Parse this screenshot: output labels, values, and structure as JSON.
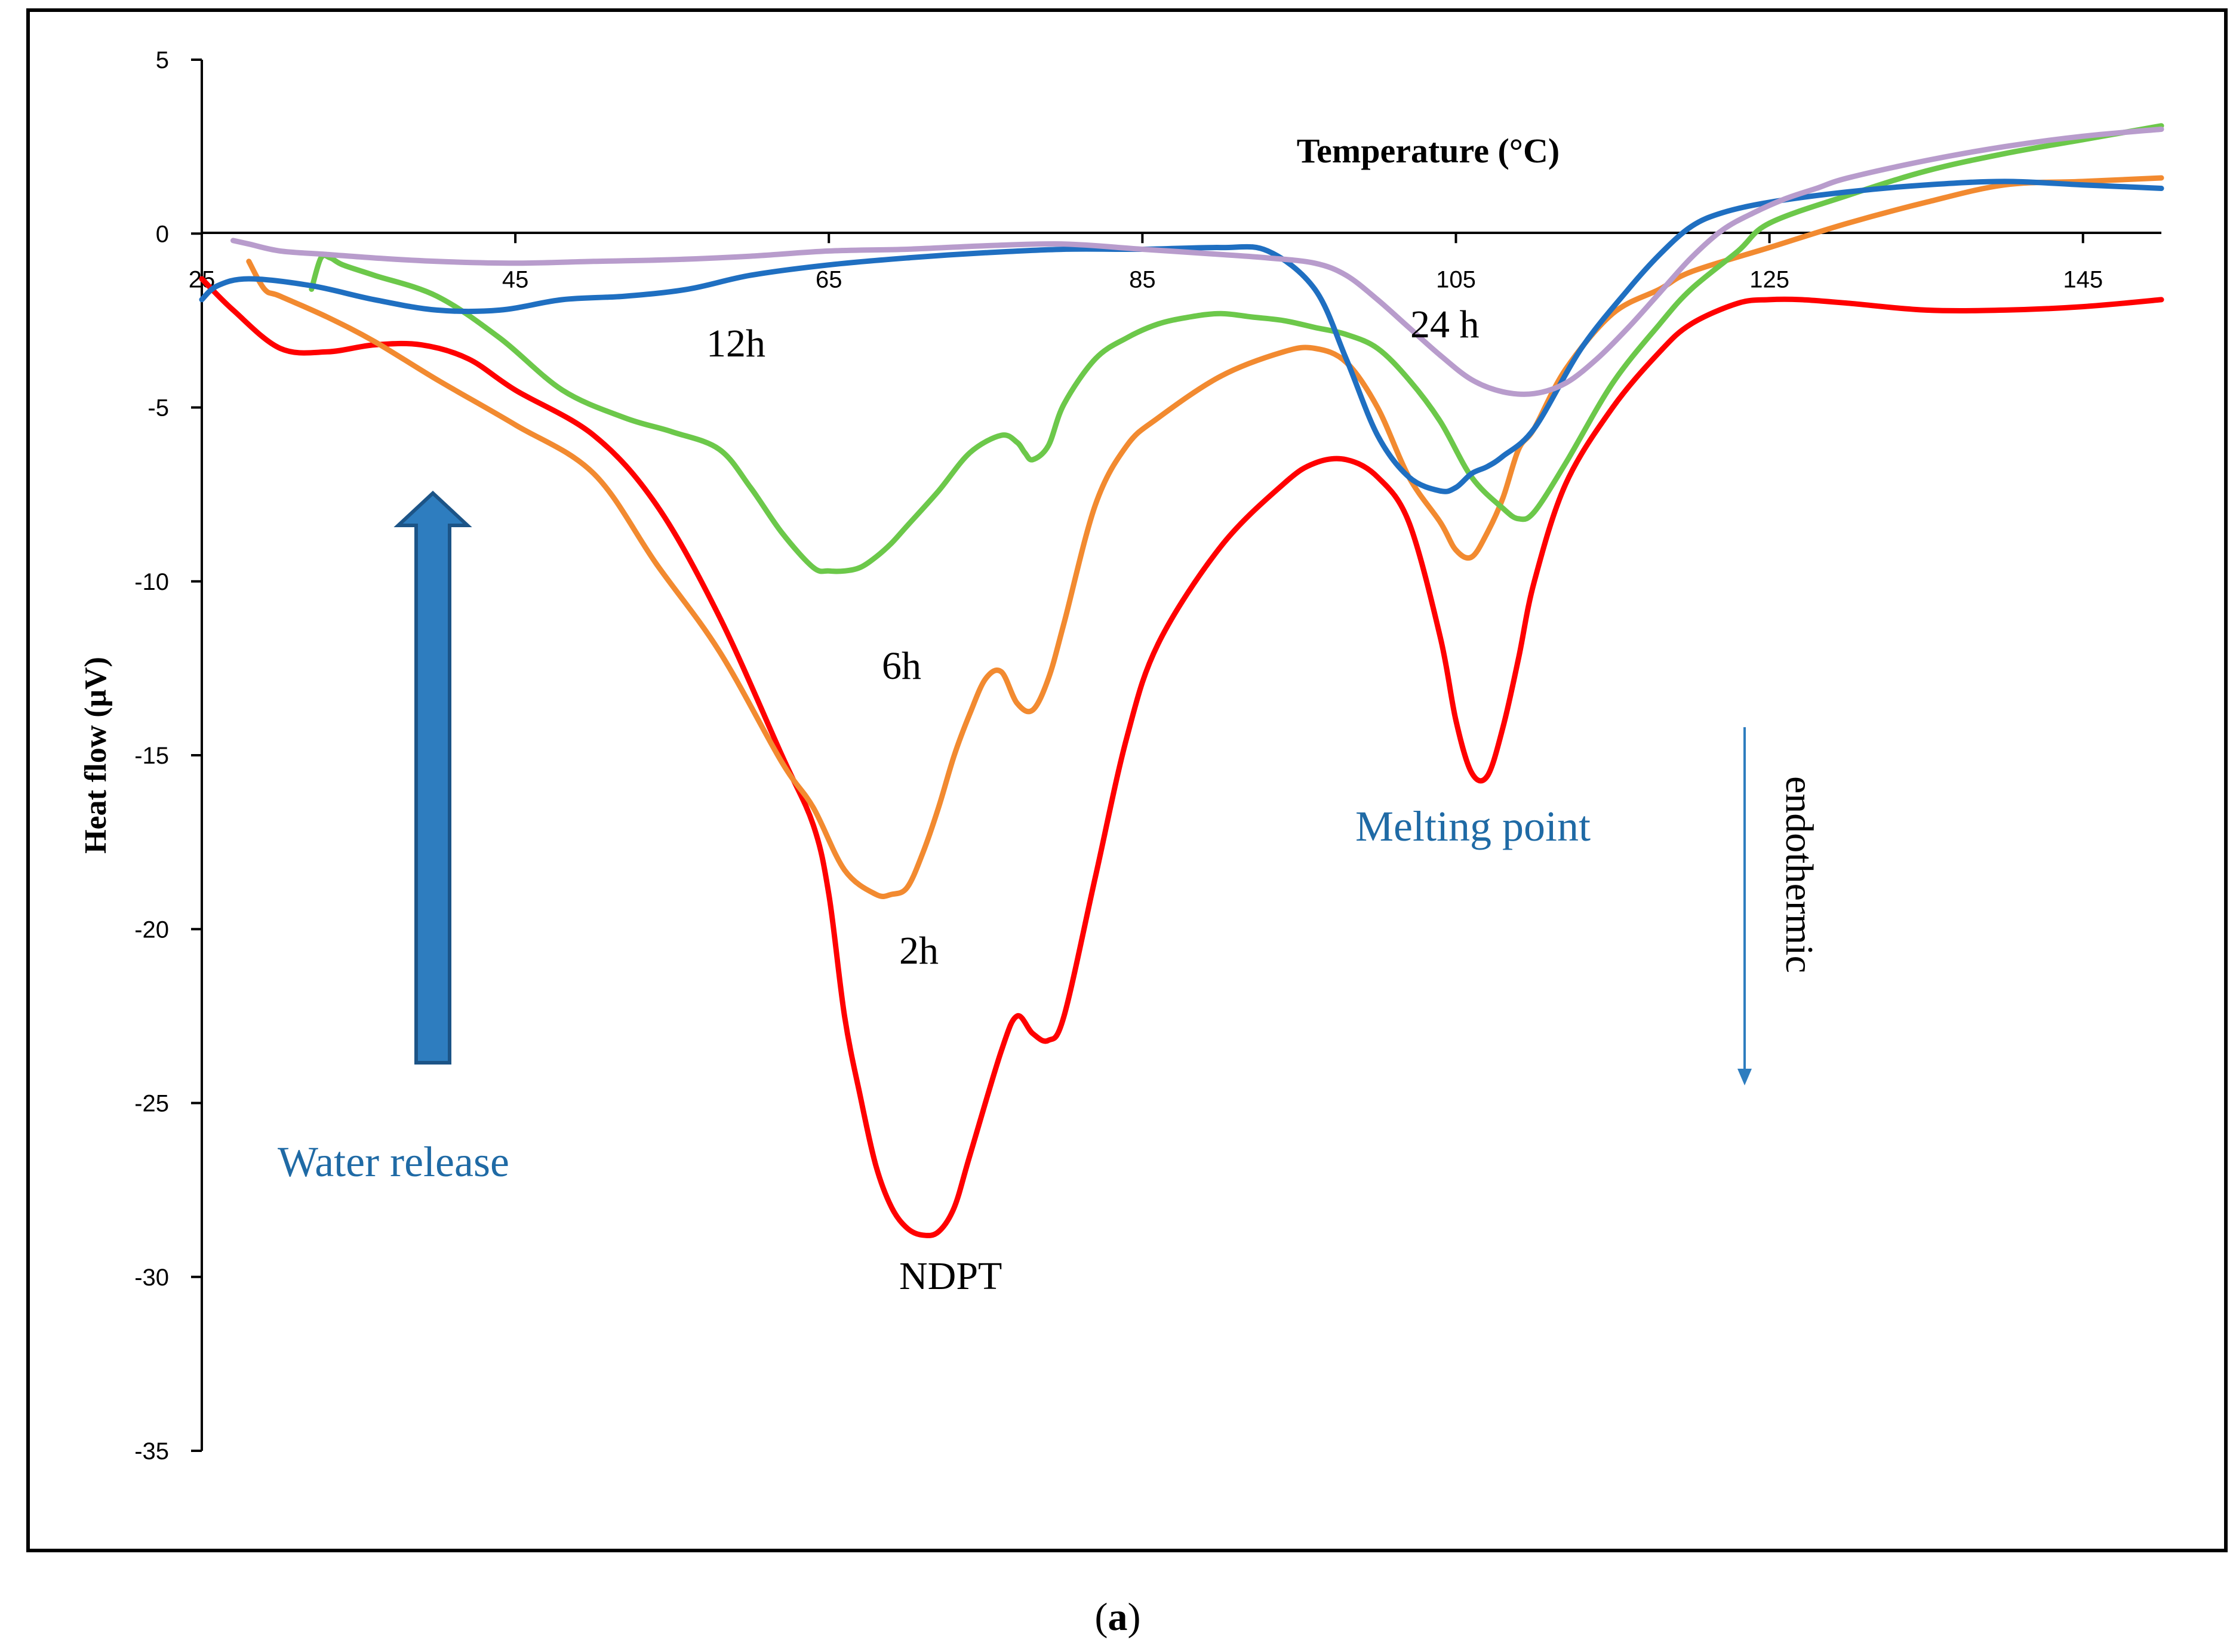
{
  "chart_data": {
    "type": "line",
    "title": "Temperature (°C)",
    "xlabel": "Temperature (°C)",
    "ylabel": "Heat flow (μV)",
    "xlim": [
      25,
      150
    ],
    "ylim": [
      -35,
      5
    ],
    "x_ticks": [
      25,
      45,
      65,
      85,
      105,
      125,
      145
    ],
    "y_ticks": [
      5,
      0,
      -5,
      -10,
      -15,
      -20,
      -25,
      -30,
      -35
    ],
    "series": [
      {
        "name": "NDPT",
        "color": "#ff0000",
        "x": [
          25,
          27,
          30,
          33,
          36,
          39,
          42,
          45,
          50,
          54,
          58,
          62,
          64,
          65,
          66,
          67,
          68,
          69,
          70,
          71,
          72,
          73,
          74,
          76,
          77,
          78,
          79,
          80,
          82,
          84,
          86,
          90,
          94,
          96,
          98,
          100,
          102,
          104,
          105,
          106,
          107,
          108,
          109,
          110,
          112,
          115,
          118,
          120,
          123,
          125,
          127,
          130,
          135,
          140,
          145,
          150
        ],
        "y": [
          -1.3,
          -2.2,
          -3.3,
          -3.4,
          -3.2,
          -3.2,
          -3.6,
          -4.5,
          -5.8,
          -7.8,
          -11,
          -15,
          -17,
          -19,
          -22.5,
          -24.8,
          -26.8,
          -28,
          -28.6,
          -28.8,
          -28.7,
          -28,
          -26.5,
          -23.5,
          -22.5,
          -23,
          -23.2,
          -22.5,
          -18.5,
          -14.5,
          -11.8,
          -9,
          -7.2,
          -6.6,
          -6.5,
          -7,
          -8.3,
          -11.6,
          -14,
          -15.5,
          -15.6,
          -14.2,
          -12.2,
          -10,
          -7.2,
          -5,
          -3.4,
          -2.6,
          -2,
          -1.9,
          -1.9,
          -2,
          -2.2,
          -2.2,
          -2.1,
          -1.9
        ]
      },
      {
        "name": "2h",
        "color": "#f28a30",
        "x": [
          28,
          29,
          30,
          33,
          36,
          40,
          45,
          50,
          54,
          58,
          62,
          64,
          66,
          68,
          69,
          70,
          71,
          72,
          73,
          74,
          75,
          76,
          77,
          78,
          79,
          80,
          82,
          84,
          86,
          90,
          94,
          96,
          98,
          100,
          102,
          104,
          105,
          106,
          107,
          108,
          109,
          110,
          112,
          115,
          118,
          120,
          125,
          130,
          135,
          140,
          145,
          150
        ],
        "y": [
          -0.8,
          -1.6,
          -1.8,
          -2.4,
          -3.1,
          -4.2,
          -5.5,
          -6.9,
          -9.5,
          -12,
          -15.2,
          -16.5,
          -18.3,
          -19,
          -19,
          -18.8,
          -17.8,
          -16.5,
          -15,
          -13.8,
          -12.8,
          -12.6,
          -13.5,
          -13.7,
          -12.8,
          -11.2,
          -7.8,
          -6.1,
          -5.3,
          -4.1,
          -3.4,
          -3.3,
          -3.7,
          -5,
          -7,
          -8.3,
          -9.1,
          -9.3,
          -8.6,
          -7.6,
          -6.2,
          -5.6,
          -3.9,
          -2.3,
          -1.6,
          -1.1,
          -0.4,
          0.3,
          0.9,
          1.4,
          1.5,
          1.6
        ]
      },
      {
        "name": "6h",
        "color": "#6cc84a",
        "x": [
          32,
          32.6,
          33.2,
          34,
          36,
          40,
          44,
          48,
          52,
          55,
          58,
          60,
          62,
          64,
          65,
          66,
          67,
          68,
          69,
          70,
          72,
          74,
          76,
          77,
          77.5,
          78,
          79,
          80,
          82,
          84,
          86,
          88,
          90,
          92,
          94,
          96,
          98,
          100,
          102,
          104,
          106,
          108,
          109,
          110,
          112,
          115,
          118,
          120,
          123,
          125,
          130,
          135,
          140,
          145,
          150
        ],
        "y": [
          -1.6,
          -0.7,
          -0.7,
          -0.9,
          -1.2,
          -1.8,
          -3,
          -4.5,
          -5.3,
          -5.7,
          -6.2,
          -7.3,
          -8.6,
          -9.6,
          -9.7,
          -9.7,
          -9.6,
          -9.3,
          -8.9,
          -8.4,
          -7.4,
          -6.3,
          -5.8,
          -6,
          -6.3,
          -6.5,
          -6.1,
          -4.9,
          -3.6,
          -3,
          -2.6,
          -2.4,
          -2.3,
          -2.4,
          -2.5,
          -2.7,
          -2.9,
          -3.3,
          -4.2,
          -5.4,
          -7,
          -7.9,
          -8.2,
          -8,
          -6.6,
          -4.3,
          -2.6,
          -1.6,
          -0.5,
          0.3,
          1.1,
          1.8,
          2.3,
          2.7,
          3.1
        ]
      },
      {
        "name": "12h",
        "color": "#1f6fc1",
        "x": [
          25,
          26,
          28,
          32,
          36,
          40,
          44,
          48,
          52,
          56,
          60,
          65,
          70,
          75,
          80,
          85,
          90,
          93,
          96,
          98,
          100,
          102,
          104,
          105,
          106,
          107,
          108,
          110,
          113,
          116,
          118,
          120,
          122,
          125,
          130,
          135,
          140,
          145,
          150
        ],
        "y": [
          -1.9,
          -1.5,
          -1.3,
          -1.5,
          -1.9,
          -2.2,
          -2.2,
          -1.9,
          -1.8,
          -1.6,
          -1.2,
          -0.9,
          -0.7,
          -0.55,
          -0.45,
          -0.45,
          -0.4,
          -0.5,
          -1.6,
          -3.6,
          -5.8,
          -7,
          -7.4,
          -7.3,
          -6.9,
          -6.7,
          -6.4,
          -5.6,
          -3.3,
          -1.6,
          -0.6,
          0.2,
          0.6,
          0.9,
          1.2,
          1.4,
          1.5,
          1.4,
          1.3
        ]
      },
      {
        "name": "24 h",
        "color": "#b89ccc",
        "x": [
          27,
          28,
          30,
          33,
          36,
          40,
          45,
          50,
          55,
          60,
          65,
          70,
          75,
          80,
          85,
          90,
          93,
          96,
          98,
          100,
          102,
          104,
          106,
          108,
          110,
          112,
          114,
          116,
          118,
          120,
          122,
          124,
          126,
          128,
          130,
          135,
          140,
          145,
          150
        ],
        "y": [
          -0.2,
          -0.3,
          -0.5,
          -0.6,
          -0.7,
          -0.8,
          -0.85,
          -0.8,
          -0.75,
          -0.65,
          -0.5,
          -0.45,
          -0.35,
          -0.3,
          -0.45,
          -0.6,
          -0.7,
          -0.85,
          -1.2,
          -1.9,
          -2.7,
          -3.5,
          -4.2,
          -4.55,
          -4.6,
          -4.3,
          -3.6,
          -2.7,
          -1.7,
          -0.7,
          0.1,
          0.6,
          1,
          1.3,
          1.6,
          2.1,
          2.5,
          2.8,
          3
        ]
      }
    ],
    "annotations": {
      "twelve_h": "12h",
      "twenty_four_h": "24 h",
      "six_h": "6h",
      "two_h": "2h",
      "ndpt": "NDPT",
      "water_release": "Water release",
      "melting_point": "Melting point",
      "endothermic": "endothermic"
    },
    "caption_open": "(",
    "caption_letter": "a",
    "caption_close": ")",
    "colors": {
      "arrow_fill": "#2e7dbf",
      "arrow_stroke": "#1c5487",
      "small_arrow": "#2e7dbf",
      "label_blue": "#1f6aa5"
    }
  }
}
